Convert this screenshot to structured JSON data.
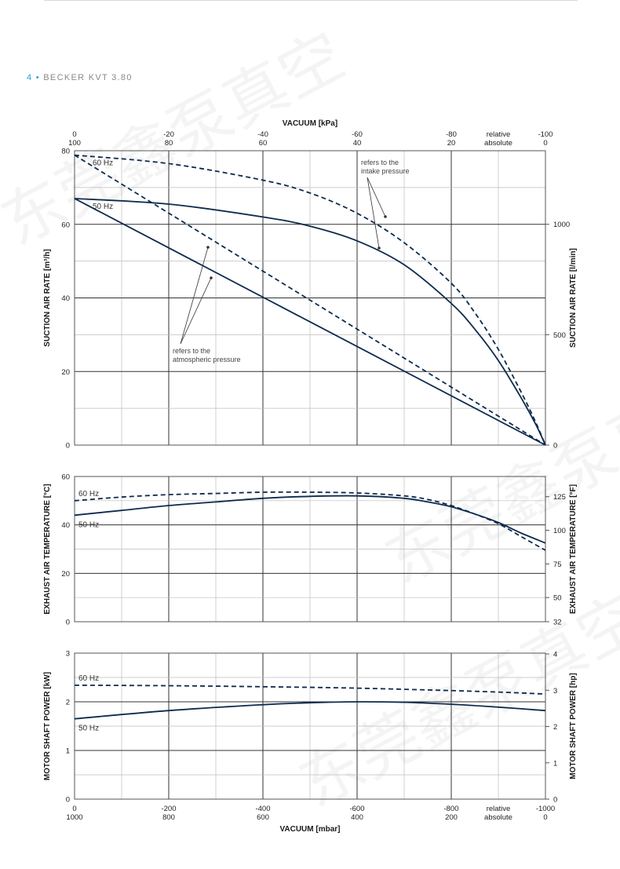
{
  "header": {
    "page_number": "4",
    "separator": "•",
    "title": "BECKER KVT 3.80"
  },
  "watermark": "东莞鑫泵真空",
  "colors": {
    "curve": "#0d2b4e",
    "grid_major": "#333333",
    "grid_minor": "#bdbdbd",
    "accent": "#2a9fd6"
  },
  "top_axis": {
    "title": "VACUUM  [kPa]",
    "ticks": [
      {
        "row1": "0",
        "row2": "100"
      },
      {
        "row1": "-20",
        "row2": "80"
      },
      {
        "row1": "-40",
        "row2": "60"
      },
      {
        "row1": "-60",
        "row2": "40"
      },
      {
        "row1": "-80",
        "row2": "20"
      },
      {
        "row1": "relative",
        "row2": "absolute"
      },
      {
        "row1": "-100",
        "row2": "0"
      }
    ]
  },
  "bottom_axis": {
    "title": "VACUUM  [mbar]",
    "ticks": [
      {
        "row1": "0",
        "row2": "1000"
      },
      {
        "row1": "-200",
        "row2": "800"
      },
      {
        "row1": "-400",
        "row2": "600"
      },
      {
        "row1": "-600",
        "row2": "400"
      },
      {
        "row1": "-800",
        "row2": "200"
      },
      {
        "row1": "relative",
        "row2": "absolute"
      },
      {
        "row1": "-1000",
        "row2": "0"
      }
    ]
  },
  "chart_data": [
    {
      "type": "line",
      "id": "suction",
      "ylabel": "SUCTION AIR RATE  [m³/h]",
      "y2label": "SUCTION AIR RATE  [l/min]",
      "ylim": [
        0,
        80
      ],
      "yticks": [
        "0",
        "20",
        "40",
        "60",
        "80"
      ],
      "y2ticks": [
        {
          "value": 0,
          "label": "0"
        },
        {
          "value": 500,
          "label": "500"
        },
        {
          "value": 1000,
          "label": "1000"
        }
      ],
      "y2max": 1333.3,
      "xlim": [
        0,
        -1000
      ],
      "annotations": [
        "refers to the",
        "intake pressure",
        "refers to the",
        "atmospheric pressure"
      ],
      "series": [
        {
          "name": "60 Hz",
          "style": "dashed",
          "label": "60 Hz",
          "x": [
            0,
            -200,
            -400,
            -500,
            -600,
            -700,
            -800,
            -850,
            -900,
            -950,
            -980,
            -1000
          ],
          "y": [
            78.8,
            76.5,
            72,
            68.5,
            63,
            55,
            44,
            36,
            26,
            14,
            6,
            0
          ]
        },
        {
          "name": "50 Hz",
          "style": "solid",
          "label": "50 Hz",
          "x": [
            0,
            -200,
            -400,
            -500,
            -600,
            -700,
            -800,
            -850,
            -900,
            -950,
            -980,
            -1000
          ],
          "y": [
            67,
            65.5,
            62,
            59.5,
            55.5,
            49,
            38.5,
            31.5,
            23,
            12.5,
            5.5,
            0
          ]
        },
        {
          "name": "60 Hz (atm)",
          "style": "dashed",
          "x": [
            0,
            -1000
          ],
          "y": [
            78.8,
            0
          ]
        },
        {
          "name": "50 Hz (atm)",
          "style": "solid",
          "x": [
            0,
            -1000
          ],
          "y": [
            67,
            0
          ]
        }
      ]
    },
    {
      "type": "line",
      "id": "exhaust",
      "ylabel": "EXHAUST AIR TEMPERATURE  [°C]",
      "y2label": "EXHAUST AIR TEMPERATURE  [°F]",
      "ylim": [
        0,
        60
      ],
      "yticks": [
        "0",
        "20",
        "40",
        "60"
      ],
      "y2ticks": [
        {
          "value": 32,
          "label": "32"
        },
        {
          "value": 50,
          "label": "50"
        },
        {
          "value": 75,
          "label": "75"
        },
        {
          "value": 100,
          "label": "100"
        },
        {
          "value": 125,
          "label": "125"
        }
      ],
      "xlim": [
        0,
        -1000
      ],
      "series": [
        {
          "name": "60 Hz",
          "style": "dashed",
          "label": "60 Hz",
          "x": [
            0,
            -100,
            -200,
            -300,
            -400,
            -500,
            -600,
            -700,
            -750,
            -800,
            -850,
            -900,
            -950,
            -1000
          ],
          "y": [
            50,
            51.5,
            52.5,
            53,
            53.5,
            53.5,
            53.2,
            52,
            50.5,
            48,
            44.5,
            40.5,
            35,
            29.5
          ]
        },
        {
          "name": "50 Hz",
          "style": "solid",
          "label": "50 Hz",
          "x": [
            0,
            -100,
            -200,
            -300,
            -400,
            -500,
            -600,
            -700,
            -750,
            -800,
            -850,
            -900,
            -950,
            -1000
          ],
          "y": [
            44,
            46,
            48,
            49.5,
            51,
            51.8,
            52,
            51,
            49.5,
            47.5,
            44.5,
            41,
            36.5,
            32.5
          ]
        }
      ]
    },
    {
      "type": "line",
      "id": "power",
      "ylabel": "MOTOR SHAFT POWER  [kW]",
      "y2label": "MOTOR SHAFT POWER  [hp]",
      "ylim": [
        0,
        3
      ],
      "yticks": [
        "0",
        "1",
        "2",
        "3"
      ],
      "y2ticks": [
        {
          "value": 0,
          "label": "0"
        },
        {
          "value": 1,
          "label": "1"
        },
        {
          "value": 2,
          "label": "2"
        },
        {
          "value": 3,
          "label": "3"
        },
        {
          "value": 4,
          "label": "4"
        }
      ],
      "y2max": 4.023,
      "xlim": [
        0,
        -1000
      ],
      "series": [
        {
          "name": "60 Hz",
          "style": "dashed",
          "label": "60 Hz",
          "x": [
            0,
            -200,
            -400,
            -600,
            -800,
            -900,
            -1000
          ],
          "y": [
            2.34,
            2.33,
            2.31,
            2.28,
            2.23,
            2.2,
            2.16
          ]
        },
        {
          "name": "50 Hz",
          "style": "solid",
          "label": "50 Hz",
          "x": [
            0,
            -200,
            -400,
            -500,
            -600,
            -700,
            -800,
            -900,
            -1000
          ],
          "y": [
            1.65,
            1.82,
            1.94,
            1.98,
            2.0,
            1.99,
            1.95,
            1.89,
            1.82
          ]
        }
      ]
    }
  ]
}
